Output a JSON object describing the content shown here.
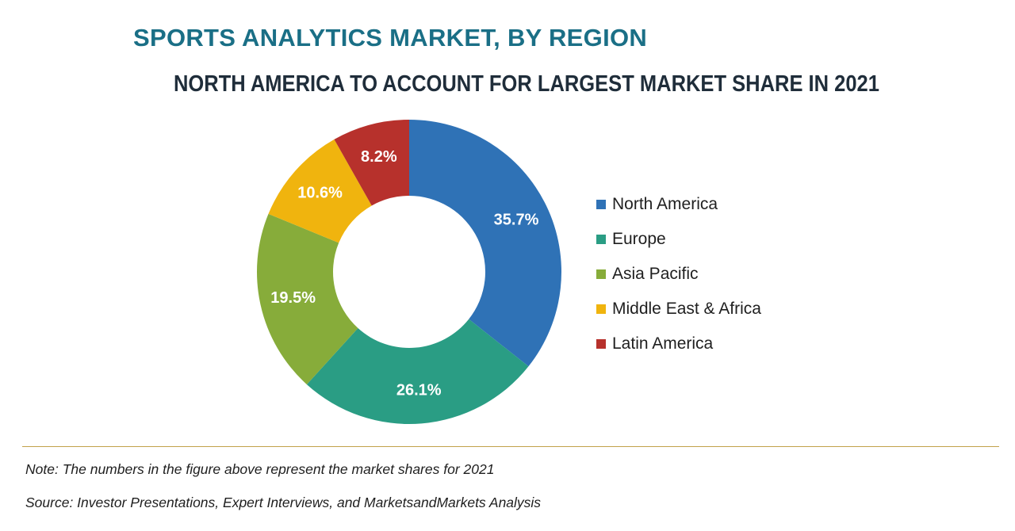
{
  "title": "SPORTS ANALYTICS MARKET, BY REGION",
  "subtitle": "NORTH AMERICA TO ACCOUNT FOR LARGEST MARKET SHARE IN 2021",
  "chart_data": {
    "type": "pie",
    "donut": true,
    "categories": [
      "North America",
      "Europe",
      "Asia Pacific",
      "Middle East & Africa",
      "Latin America"
    ],
    "values": [
      35.7,
      26.1,
      19.5,
      10.6,
      8.2
    ],
    "data_labels": [
      "35.7%",
      "26.1%",
      "19.5%",
      "10.6%",
      "8.2%"
    ],
    "colors": [
      "#2f72b6",
      "#2a9d84",
      "#87ac3a",
      "#f0b40e",
      "#b7312c"
    ],
    "legend_placement": "right"
  },
  "footer": {
    "note": "Note: The numbers in the figure above represent the market shares for 2021",
    "source": "Source: Investor Presentations, Expert Interviews, and MarketsandMarkets Analysis"
  }
}
